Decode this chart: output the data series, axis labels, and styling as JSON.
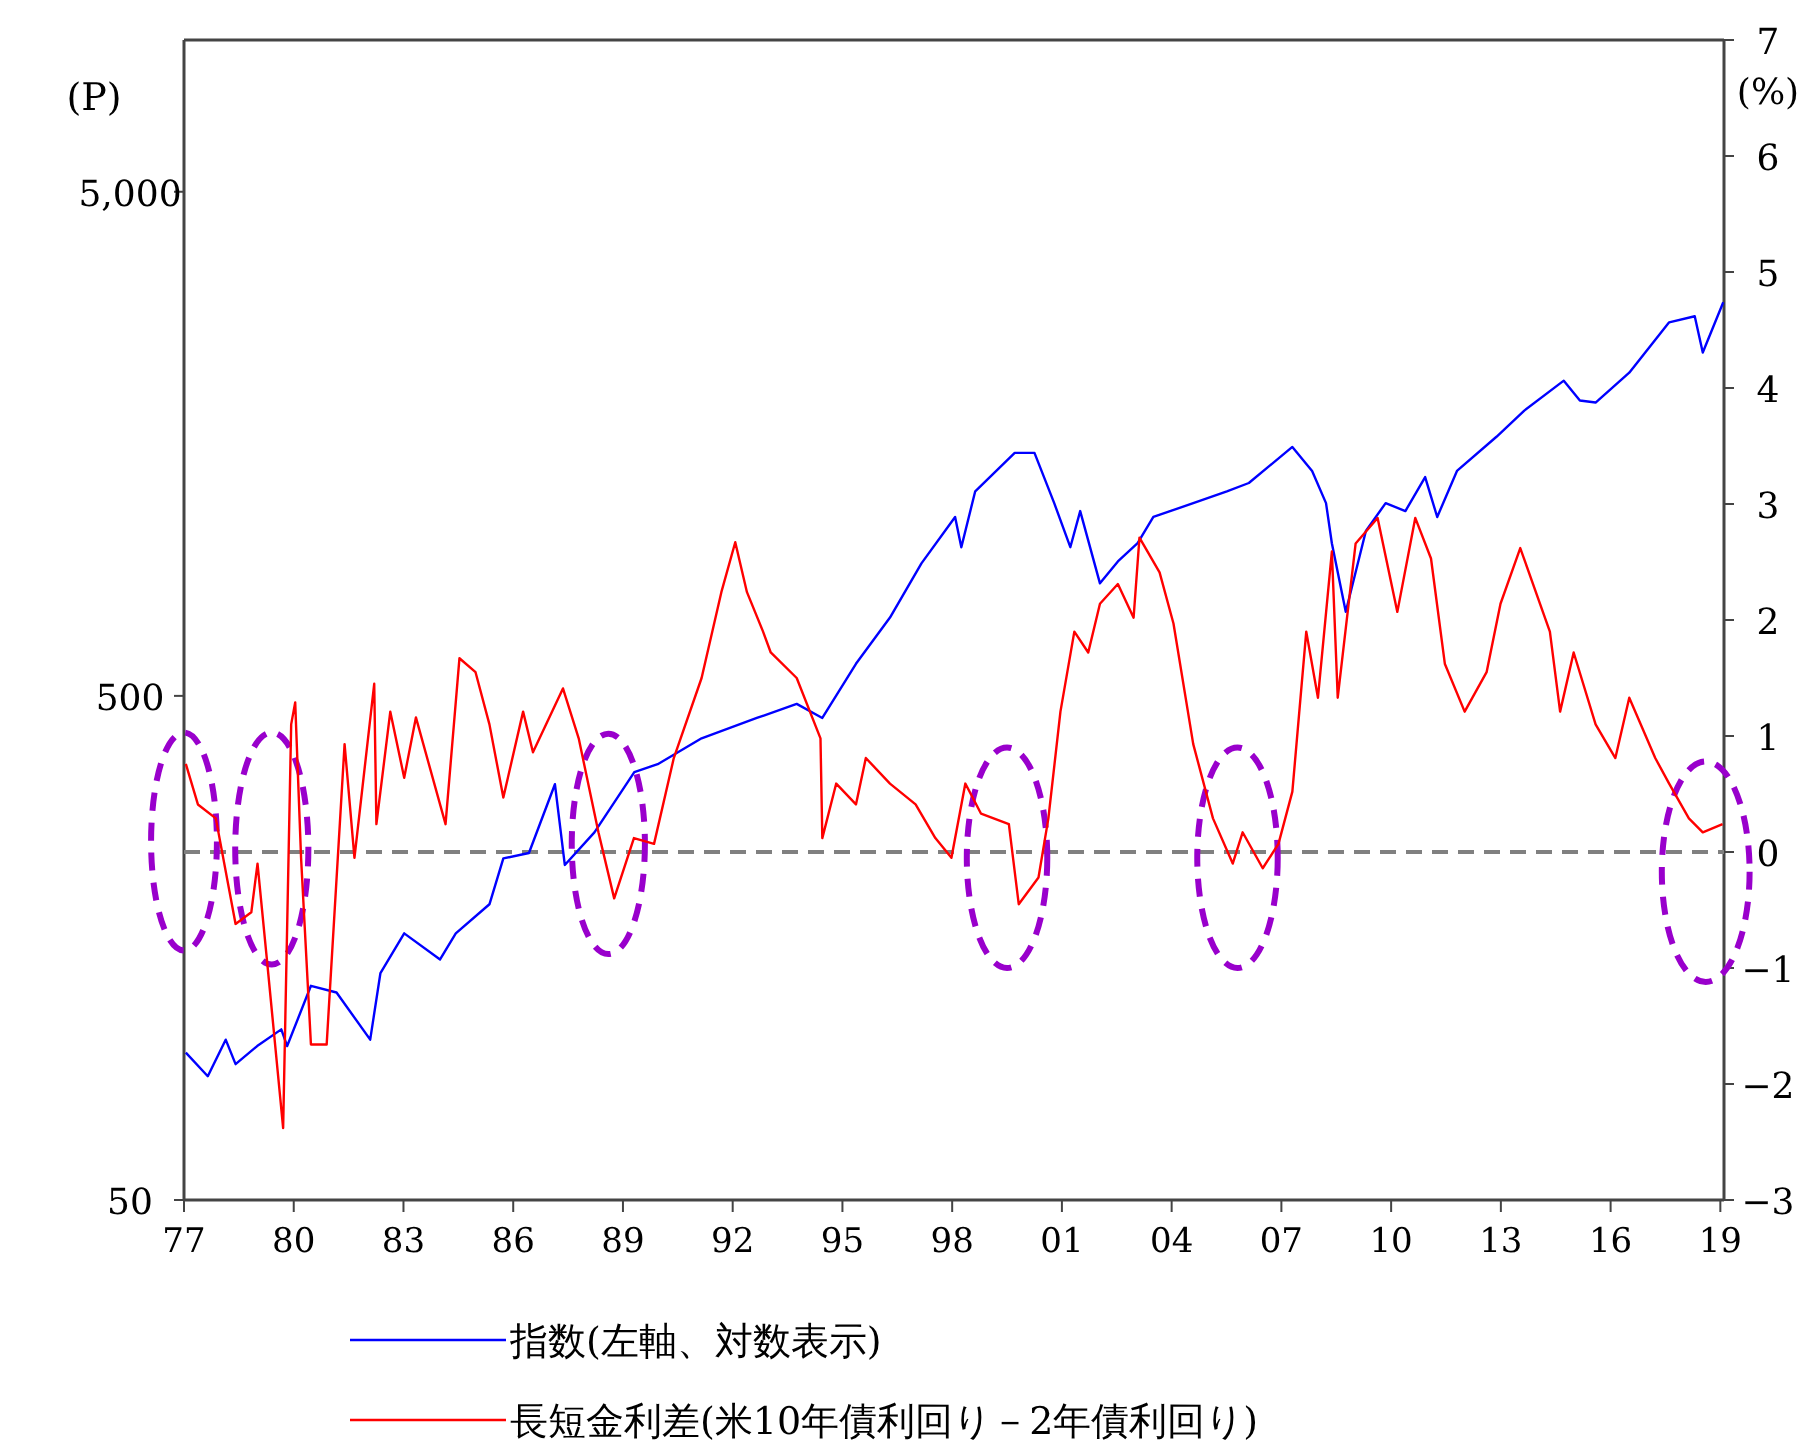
{
  "chart_data": {
    "type": "line",
    "ylabel": "(P)",
    "y2label": "(%)",
    "log": "y",
    "legend": "bottom",
    "grid": false,
    "xlim": [
      1977,
      2019.1
    ],
    "xticks": [
      {
        "value": 1977,
        "label": "77"
      },
      {
        "value": 1980,
        "label": "80"
      },
      {
        "value": 1983,
        "label": "83"
      },
      {
        "value": 1986,
        "label": "86"
      },
      {
        "value": 1989,
        "label": "89"
      },
      {
        "value": 1992,
        "label": "92"
      },
      {
        "value": 1995,
        "label": "95"
      },
      {
        "value": 1998,
        "label": "98"
      },
      {
        "value": 2001,
        "label": "01"
      },
      {
        "value": 2004,
        "label": "04"
      },
      {
        "value": 2007,
        "label": "07"
      },
      {
        "value": 2010,
        "label": "10"
      },
      {
        "value": 2013,
        "label": "13"
      },
      {
        "value": 2016,
        "label": "16"
      },
      {
        "value": 2019,
        "label": "19"
      }
    ],
    "ylim": [
      50,
      10000
    ],
    "yticks": [
      50,
      500,
      {
        "value": 5000,
        "label": "5,000"
      }
    ],
    "y2lim": [
      -3,
      7
    ],
    "y2ticks": [
      -3,
      -2,
      -1,
      0,
      1,
      2,
      3,
      4,
      5,
      6,
      7
    ],
    "ref_lines": [
      {
        "axis": "y2",
        "value": 0,
        "color": "#808080",
        "line_style": "dashed"
      }
    ],
    "series": [
      {
        "name": "指数(左軸、対数表示)",
        "color": "#0000ff",
        "axis": "y",
        "x": [
          1977.05,
          1977.65,
          1978.14,
          1978.41,
          1979.0,
          1979.66,
          1979.82,
          1980.47,
          1981.17,
          1982.09,
          1982.37,
          1983.02,
          1984.0,
          1984.43,
          1985.35,
          1985.73,
          1986.43,
          1987.14,
          1987.41,
          1988.22,
          1989.31,
          1989.95,
          1991.15,
          1992.66,
          1993.75,
          1994.45,
          1995.37,
          1996.3,
          1997.16,
          1998.08,
          1998.25,
          1998.63,
          1999.71,
          2000.25,
          2000.79,
          2001.23,
          2001.5,
          2002.04,
          2002.53,
          2003.07,
          2003.5,
          2004.59,
          2005.51,
          2006.11,
          2007.3,
          2007.84,
          2008.22,
          2008.38,
          2008.76,
          2009.31,
          2009.85,
          2010.39,
          2010.93,
          2011.26,
          2011.8,
          2012.88,
          2013.64,
          2014.72,
          2015.16,
          2015.59,
          2016.51,
          2017.6,
          2018.3,
          2018.52,
          2019.08
        ],
        "values": [
          98,
          88,
          104,
          93,
          101,
          109,
          101,
          133,
          129,
          104,
          141,
          169,
          150,
          169,
          193,
          238,
          244,
          334,
          231,
          268,
          353,
          366,
          412,
          452,
          482,
          452,
          579,
          715,
          916,
          1132,
          986,
          1273,
          1517,
          1517,
          1206,
          986,
          1163,
          836,
          924,
          1004,
          1132,
          1206,
          1273,
          1322,
          1559,
          1397,
          1206,
          1004,
          734,
          1062,
          1206,
          1163,
          1358,
          1132,
          1397,
          1633,
          1840,
          2110,
          1927,
          1909,
          2188,
          2754,
          2832,
          2399,
          3019
        ]
      },
      {
        "name": "長短金利差(米10年債利回り－2年債利回り)",
        "color": "#ff0000",
        "axis": "y2",
        "x": [
          1977.05,
          1977.38,
          1977.87,
          1978.41,
          1978.84,
          1979.01,
          1979.28,
          1979.71,
          1979.93,
          1980.04,
          1980.2,
          1980.47,
          1980.9,
          1981.39,
          1981.66,
          1982.2,
          1982.26,
          1982.64,
          1983.02,
          1983.34,
          1984.15,
          1984.53,
          1984.97,
          1985.35,
          1985.73,
          1986.27,
          1986.54,
          1987.36,
          1987.79,
          1988.33,
          1988.76,
          1989.3,
          1989.85,
          1990.39,
          1991.15,
          1991.69,
          1992.07,
          1992.39,
          1992.83,
          1993.04,
          1993.75,
          1994.4,
          1994.45,
          1994.83,
          1995.37,
          1995.64,
          1996.3,
          1997.0,
          1997.54,
          1997.98,
          1998.36,
          1998.79,
          1999.55,
          1999.82,
          2000.36,
          2000.63,
          2000.96,
          2001.34,
          2001.72,
          2002.04,
          2002.53,
          2002.96,
          2003.12,
          2003.67,
          2004.05,
          2004.59,
          2005.13,
          2005.67,
          2005.94,
          2006.49,
          2006.92,
          2007.3,
          2007.68,
          2008.0,
          2008.38,
          2008.54,
          2009.03,
          2009.63,
          2010.17,
          2010.66,
          2011.09,
          2011.47,
          2012.01,
          2012.61,
          2012.99,
          2013.53,
          2014.34,
          2014.62,
          2014.99,
          2015.59,
          2016.13,
          2016.51,
          2017.22,
          2017.6,
          2018.14,
          2018.52,
          2019.06
        ],
        "values": [
          0.76,
          0.41,
          0.29,
          -0.62,
          -0.52,
          -0.1,
          -0.97,
          -2.38,
          1.1,
          1.29,
          -0.05,
          -1.66,
          -1.66,
          0.93,
          -0.05,
          1.45,
          0.24,
          1.21,
          0.64,
          1.16,
          0.24,
          1.67,
          1.55,
          1.1,
          0.47,
          1.21,
          0.86,
          1.41,
          0.98,
          0.17,
          -0.4,
          0.12,
          0.07,
          0.81,
          1.5,
          2.24,
          2.67,
          2.24,
          1.9,
          1.72,
          1.5,
          0.98,
          0.12,
          0.59,
          0.41,
          0.81,
          0.59,
          0.41,
          0.12,
          -0.05,
          0.59,
          0.33,
          0.24,
          -0.45,
          -0.22,
          0.29,
          1.21,
          1.9,
          1.72,
          2.14,
          2.31,
          2.02,
          2.71,
          2.41,
          1.97,
          0.93,
          0.29,
          -0.1,
          0.17,
          -0.14,
          0.07,
          0.52,
          1.9,
          1.33,
          2.59,
          1.33,
          2.66,
          2.88,
          2.07,
          2.88,
          2.53,
          1.62,
          1.21,
          1.55,
          2.14,
          2.62,
          1.9,
          1.21,
          1.72,
          1.1,
          0.81,
          1.33,
          0.81,
          0.59,
          0.29,
          0.17,
          0.24
        ]
      }
    ]
  }
}
